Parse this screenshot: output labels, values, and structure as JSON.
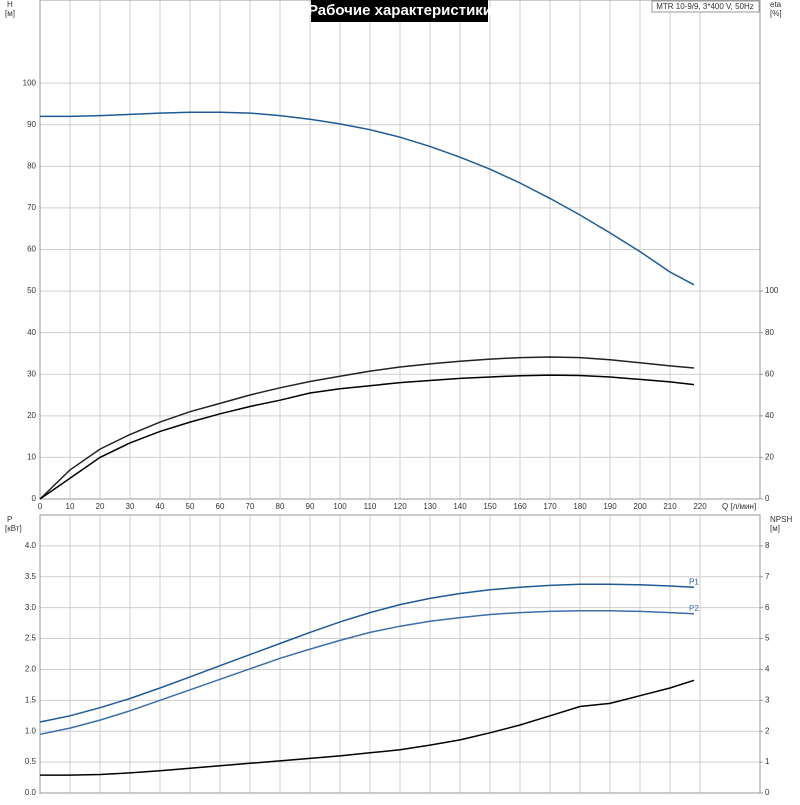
{
  "title": "Рабочие характеристики",
  "info": "MTR 10-9/9, 3*400 V, 50Hz",
  "chart_data": [
    {
      "type": "line",
      "ylabel": "H",
      "yunit": "[м]",
      "y2label": "eta",
      "y2unit": "[%]",
      "xlabel": "Q [л/мин]",
      "x": [
        0,
        10,
        20,
        30,
        40,
        50,
        60,
        70,
        80,
        90,
        100,
        110,
        120,
        130,
        140,
        150,
        160,
        170,
        180,
        190,
        200,
        210,
        218
      ],
      "xlim": [
        0,
        240
      ],
      "xticks": [
        0,
        10,
        20,
        30,
        40,
        50,
        60,
        70,
        80,
        90,
        100,
        110,
        120,
        130,
        140,
        150,
        160,
        170,
        180,
        190,
        200,
        210,
        220
      ],
      "ylim": [
        0,
        120
      ],
      "yticks": [
        0,
        10,
        20,
        30,
        40,
        50,
        60,
        70,
        80,
        90,
        100
      ],
      "y2lim": [
        0,
        240
      ],
      "y2ticks": [
        0,
        20,
        40,
        60,
        80,
        100
      ],
      "grid": true,
      "series": [
        {
          "color": "#1f5a96",
          "values": [
            92,
            92,
            92.2,
            92.5,
            92.8,
            93,
            93,
            92.8,
            92.2,
            91.3,
            90.2,
            88.8,
            87,
            84.8,
            82.2,
            79.3,
            76,
            72.3,
            68.3,
            64,
            59.5,
            54.6,
            51.5
          ]
        },
        {
          "color": "#222222",
          "axis": "y2",
          "values": [
            0,
            14,
            24,
            31,
            37,
            42,
            46,
            50,
            53.5,
            56.5,
            59,
            61.5,
            63.5,
            65,
            66.3,
            67.3,
            68,
            68.3,
            68,
            67,
            65.5,
            64,
            63
          ]
        },
        {
          "color": "#000000",
          "axis": "y2",
          "values": [
            0,
            10,
            20,
            27,
            32.5,
            37,
            41,
            44.5,
            47.5,
            51,
            53,
            54.5,
            56,
            57,
            58,
            58.7,
            59.3,
            59.6,
            59.4,
            58.7,
            57.5,
            56.3,
            55
          ]
        }
      ]
    },
    {
      "type": "line",
      "ylabel": "P",
      "yunit": "[кВт]",
      "y2label": "NPSH",
      "y2unit": "[м]",
      "x": [
        0,
        10,
        20,
        30,
        40,
        50,
        60,
        70,
        80,
        90,
        100,
        110,
        120,
        130,
        140,
        150,
        160,
        170,
        180,
        190,
        200,
        210,
        218
      ],
      "ylim": [
        0,
        4.5
      ],
      "yticks": [
        {
          "value": 0,
          "label": "0.0"
        },
        0.5,
        {
          "value": 1,
          "label": "1.0"
        },
        1.5,
        {
          "value": 2,
          "label": "2.0"
        },
        2.5,
        {
          "value": 3,
          "label": "3.0"
        },
        3.5,
        {
          "value": 4,
          "label": "4.0"
        }
      ],
      "y2lim": [
        0,
        9
      ],
      "y2ticks": [
        0,
        1,
        2,
        3,
        4,
        5,
        6,
        7,
        8
      ],
      "grid": true,
      "series": [
        {
          "name": "P1",
          "color": "#1f5a96",
          "values": [
            1.15,
            1.25,
            1.38,
            1.53,
            1.7,
            1.88,
            2.06,
            2.24,
            2.42,
            2.6,
            2.77,
            2.92,
            3.05,
            3.15,
            3.23,
            3.29,
            3.33,
            3.36,
            3.38,
            3.38,
            3.37,
            3.35,
            3.33
          ]
        },
        {
          "name": "P2",
          "color": "#3a6fa8",
          "values": [
            0.95,
            1.05,
            1.18,
            1.33,
            1.5,
            1.67,
            1.84,
            2.01,
            2.18,
            2.33,
            2.47,
            2.6,
            2.7,
            2.78,
            2.84,
            2.89,
            2.92,
            2.94,
            2.95,
            2.95,
            2.94,
            2.92,
            2.9
          ]
        },
        {
          "color": "#000000",
          "axis": "y2",
          "values": [
            0.58,
            0.58,
            0.6,
            0.65,
            0.72,
            0.8,
            0.88,
            0.96,
            1.04,
            1.12,
            1.2,
            1.3,
            1.4,
            1.55,
            1.72,
            1.95,
            2.2,
            2.5,
            2.8,
            2.9,
            3.15,
            3.4,
            3.65
          ]
        }
      ]
    }
  ]
}
